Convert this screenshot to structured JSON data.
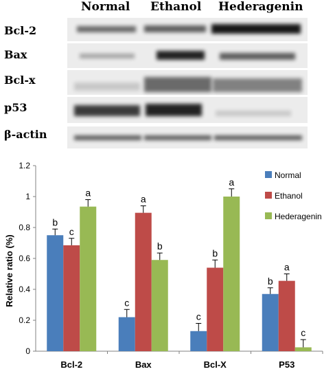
{
  "blot": {
    "columns": [
      "Normal",
      "Ethanol",
      "Hederagenin"
    ],
    "rows": [
      {
        "label": "Bcl-2",
        "intensity": [
          0.55,
          0.6,
          0.9
        ]
      },
      {
        "label": "Bax",
        "intensity": [
          0.3,
          0.85,
          0.6
        ]
      },
      {
        "label": "Bcl-x",
        "intensity": [
          0.15,
          0.55,
          0.45
        ]
      },
      {
        "label": "p53",
        "intensity": [
          0.75,
          0.85,
          0.15
        ]
      },
      {
        "label": "β-actin",
        "intensity": [
          0.6,
          0.6,
          0.6
        ]
      }
    ]
  },
  "chart_data": {
    "type": "bar",
    "categories": [
      "Bcl-2",
      "Bax",
      "Bcl-X",
      "P53"
    ],
    "series": [
      {
        "name": "Normal",
        "color": "#4a7ebb",
        "values": [
          0.75,
          0.22,
          0.13,
          0.37
        ],
        "errors": [
          0.04,
          0.05,
          0.05,
          0.04
        ],
        "letters": [
          "b",
          "c",
          "c",
          "b"
        ]
      },
      {
        "name": "Ethanol",
        "color": "#be4b48",
        "values": [
          0.685,
          0.895,
          0.54,
          0.455
        ],
        "errors": [
          0.045,
          0.045,
          0.05,
          0.045
        ],
        "letters": [
          "c",
          "a",
          "b",
          "a"
        ]
      },
      {
        "name": "Hederagenin",
        "color": "#98b954",
        "values": [
          0.935,
          0.59,
          1.0,
          0.025
        ],
        "errors": [
          0.045,
          0.045,
          0.05,
          0.05
        ],
        "letters": [
          "a",
          "b",
          "a",
          "c"
        ]
      }
    ],
    "ylabel": "Relative ratio (%)",
    "ylim": [
      0,
      1.2
    ],
    "yticks": [
      "0",
      "0.2",
      "0.4",
      "0.6",
      "0.8",
      "1",
      "1.2"
    ],
    "legend_position": "top-right",
    "grid": false
  }
}
